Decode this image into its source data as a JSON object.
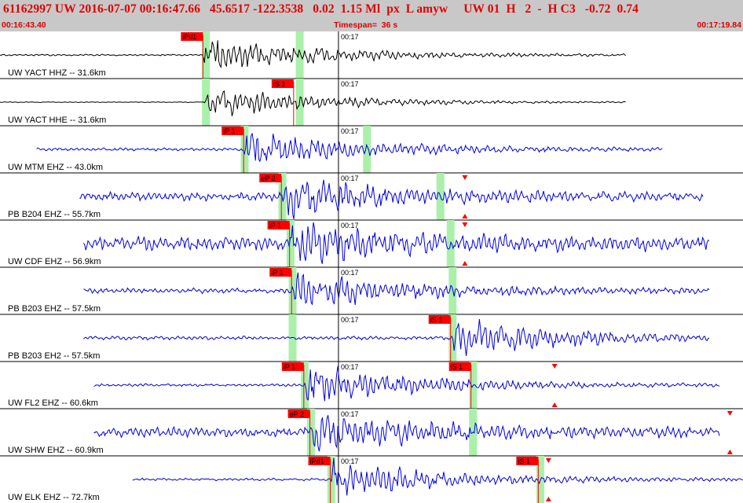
{
  "header": {
    "title": "61162997 UW 2016-07-07 00:16:47.66   45.6517 -122.3538   0.02  1.15 Ml  px  L amyw     UW 01  H   2  -  H C3   -0.72  0.74",
    "start_time": "00:16:43.40",
    "timespan": "Timespan=  36 s",
    "end_time": "00:17:19.84",
    "color": "#e00000"
  },
  "chart_data": {
    "type": "line",
    "x_range_s": [
      0,
      36.44
    ],
    "minute_tick_label": "00:17",
    "minute_tick_s": 16.6,
    "colors": {
      "seismogram": "#0000e0",
      "trace_alt": "#000000",
      "pick_box": "#ff0000",
      "window": "#aaf0aa",
      "tick": "#ff0000"
    },
    "traces": [
      {
        "label": "UW YACT HHZ -- 31.6km",
        "color": "#000000",
        "data_start_s": 0.0,
        "data_end_s": 30.7,
        "amplitude": 0.75,
        "noise": 0.04,
        "onset_s": 9.95,
        "picks": [
          {
            "label": "iPd1",
            "time_s": 9.95
          }
        ],
        "windows_s": [
          10.1,
          14.7
        ],
        "ticks_s": []
      },
      {
        "label": "UW YACT HHE -- 31.6km",
        "color": "#000000",
        "data_start_s": 0.0,
        "data_end_s": 30.7,
        "amplitude": 0.7,
        "noise": 0.02,
        "onset_s": 10.0,
        "picks": [
          {
            "label": "iS 1",
            "time_s": 14.4
          }
        ],
        "windows_s": [
          10.1,
          14.7
        ],
        "ticks_s": []
      },
      {
        "label": "UW MTM EHZ -- 43.0km",
        "color": "#0000e0",
        "data_start_s": 1.8,
        "data_end_s": 32.5,
        "amplitude": 0.8,
        "noise": 0.07,
        "onset_s": 11.95,
        "picks": [
          {
            "label": "iP 1",
            "time_s": 11.95
          }
        ],
        "windows_s": [
          12.0,
          18.0
        ],
        "ticks_s": []
      },
      {
        "label": "PB B204 EHZ -- 55.7km",
        "color": "#0000e0",
        "data_start_s": 3.9,
        "data_end_s": 34.5,
        "amplitude": 0.85,
        "noise": 0.18,
        "onset_s": 13.8,
        "picks": [
          {
            "label": "eP 2",
            "time_s": 13.8
          }
        ],
        "windows_s": [
          13.85,
          21.6
        ],
        "ticks_s": [
          22.8
        ]
      },
      {
        "label": "UW CDF EHZ -- 56.9km",
        "color": "#0000e0",
        "data_start_s": 4.1,
        "data_end_s": 34.8,
        "amplitude": 0.9,
        "noise": 0.3,
        "onset_s": 14.2,
        "picks": [
          {
            "label": "iP 1",
            "time_s": 14.2
          }
        ],
        "windows_s": [
          14.25,
          22.1
        ],
        "ticks_s": [
          22.8
        ]
      },
      {
        "label": "PB B203 EHZ -- 57.5km",
        "color": "#0000e0",
        "data_start_s": 4.1,
        "data_end_s": 34.8,
        "amplitude": 0.8,
        "noise": 0.12,
        "onset_s": 14.3,
        "picks": [
          {
            "label": "iP 1",
            "time_s": 14.3
          }
        ],
        "windows_s": [
          14.35,
          22.2
        ],
        "ticks_s": []
      },
      {
        "label": "PB B203 EH2 -- 57.5km",
        "color": "#0000e0",
        "data_start_s": 4.1,
        "data_end_s": 34.8,
        "amplitude": 0.85,
        "noise": 0.08,
        "onset_s": 22.1,
        "picks": [
          {
            "label": "iS 1",
            "time_s": 22.1
          }
        ],
        "windows_s": [
          14.35,
          22.2
        ],
        "ticks_s": []
      },
      {
        "label": "UW FL2 EHZ -- 60.6km",
        "color": "#0000e0",
        "data_start_s": 4.6,
        "data_end_s": 35.3,
        "amplitude": 0.85,
        "noise": 0.06,
        "onset_s": 14.9,
        "picks": [
          {
            "label": "iP 1",
            "time_s": 14.9
          },
          {
            "label": "iS 1",
            "time_s": 23.1
          }
        ],
        "windows_s": [
          14.95,
          23.2
        ],
        "ticks_s": [
          27.2
        ]
      },
      {
        "label": "UW SHW EHZ -- 60.9km",
        "color": "#0000e0",
        "data_start_s": 4.6,
        "data_end_s": 35.3,
        "amplitude": 0.85,
        "noise": 0.22,
        "onset_s": 15.2,
        "picks": [
          {
            "label": "eP 2",
            "time_s": 15.2
          }
        ],
        "windows_s": [
          15.25,
          23.2
        ],
        "ticks_s": [
          35.8
        ]
      },
      {
        "label": "UW ELK EHZ -- 72.7km",
        "color": "#0000e0",
        "data_start_s": 6.5,
        "data_end_s": 36.44,
        "amplitude": 0.8,
        "noise": 0.06,
        "onset_s": 16.2,
        "picks": [
          {
            "label": "iPd1",
            "time_s": 16.2
          },
          {
            "label": "iS 1",
            "time_s": 26.4
          }
        ],
        "windows_s": [
          16.25,
          26.5
        ],
        "ticks_s": [
          26.9
        ]
      }
    ]
  }
}
